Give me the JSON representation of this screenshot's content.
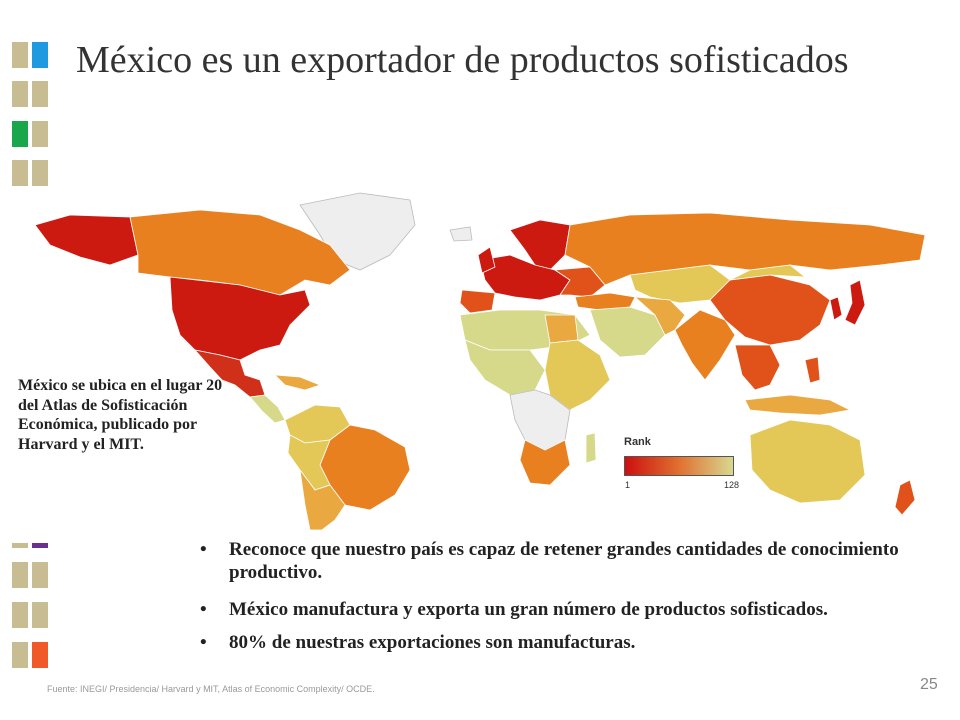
{
  "slide": {
    "title": "México es un exportador de productos sofisticados",
    "side_note": "México se ubica en el lugar 20 del Atlas de Sofisticación Económica, publicado por Harvard y el MIT.",
    "bullets": [
      "Reconoce que nuestro país es capaz de retener grandes cantidades de conocimiento productivo.",
      "México manufactura y exporta un gran número de productos sofisticados.",
      "80% de nuestras exportaciones son manufacturas."
    ],
    "bullet_symbol": "•",
    "source": "Fuente: INEGI/ Presidencia/ Harvard y MIT, Atlas of Economic Complexity/ OCDE.",
    "page_number": "25"
  },
  "map": {
    "legend": {
      "title": "Rank",
      "min_label": "1",
      "max_label": "128",
      "gradient_colors": [
        "#cc1010",
        "#e07030",
        "#d8d890"
      ]
    },
    "colors": {
      "rank_high": "#cc1a10",
      "rank_mid_high": "#e0521a",
      "rank_mid": "#e8801f",
      "rank_mid_low": "#eaa840",
      "rank_low": "#e3c858",
      "rank_lowest": "#d6d88a",
      "no_data": "#eeeeee"
    }
  },
  "decor": {
    "colors": {
      "tan": "#c8bd92",
      "blue": "#1f9ae0",
      "green": "#1aa64a",
      "purple": "#6a2f8f",
      "orange": "#ef5a28"
    }
  }
}
